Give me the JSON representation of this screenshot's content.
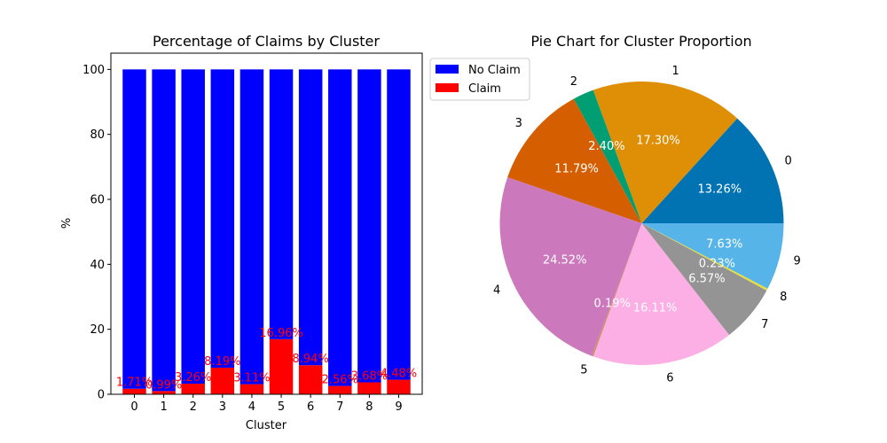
{
  "chart_data": [
    {
      "type": "bar",
      "stacked": true,
      "title": "Percentage of Claims by Cluster",
      "xlabel": "Cluster",
      "ylabel": "%",
      "ylim": [
        0,
        105
      ],
      "yticks": [
        0,
        20,
        40,
        60,
        80,
        100
      ],
      "grid": false,
      "legend": "outside upper-right",
      "categories": [
        "0",
        "1",
        "2",
        "3",
        "4",
        "5",
        "6",
        "7",
        "8",
        "9"
      ],
      "series": [
        {
          "name": "No Claim",
          "color": "#0000ff",
          "values": [
            98.29,
            99.01,
            96.74,
            91.81,
            96.89,
            83.04,
            91.06,
            97.44,
            96.32,
            95.52
          ]
        },
        {
          "name": "Claim",
          "color": "#ff0000",
          "values": [
            1.71,
            0.99,
            3.26,
            8.19,
            3.11,
            16.96,
            8.94,
            2.56,
            3.68,
            4.48
          ]
        }
      ],
      "data_labels": [
        "1.71%",
        "0.99%",
        "3.26%",
        "8.19%",
        "3.11%",
        "16.96%",
        "8.94%",
        "2.56%",
        "3.68%",
        "4.48%"
      ],
      "label_color": "#ff0000"
    },
    {
      "type": "pie",
      "title": "Pie Chart for Cluster Proportion",
      "start_angle_deg": 0,
      "direction": "counterclockwise",
      "slices": [
        {
          "label": "0",
          "value": 13.26,
          "pct_label": "13.26%",
          "color": "#0173b2"
        },
        {
          "label": "1",
          "value": 17.3,
          "pct_label": "17.30%",
          "color": "#de8f05"
        },
        {
          "label": "2",
          "value": 2.4,
          "pct_label": "2.40%",
          "color": "#029e73"
        },
        {
          "label": "3",
          "value": 11.79,
          "pct_label": "11.79%",
          "color": "#d55e00"
        },
        {
          "label": "4",
          "value": 24.52,
          "pct_label": "24.52%",
          "color": "#cc78bc"
        },
        {
          "label": "5",
          "value": 0.19,
          "pct_label": "0.19%",
          "color": "#ca9161"
        },
        {
          "label": "6",
          "value": 16.11,
          "pct_label": "16.11%",
          "color": "#fbafe4"
        },
        {
          "label": "7",
          "value": 6.57,
          "pct_label": "6.57%",
          "color": "#949494"
        },
        {
          "label": "8",
          "value": 0.23,
          "pct_label": "0.23%",
          "color": "#ece133"
        },
        {
          "label": "9",
          "value": 7.63,
          "pct_label": "7.63%",
          "color": "#56b4e9"
        }
      ]
    }
  ]
}
